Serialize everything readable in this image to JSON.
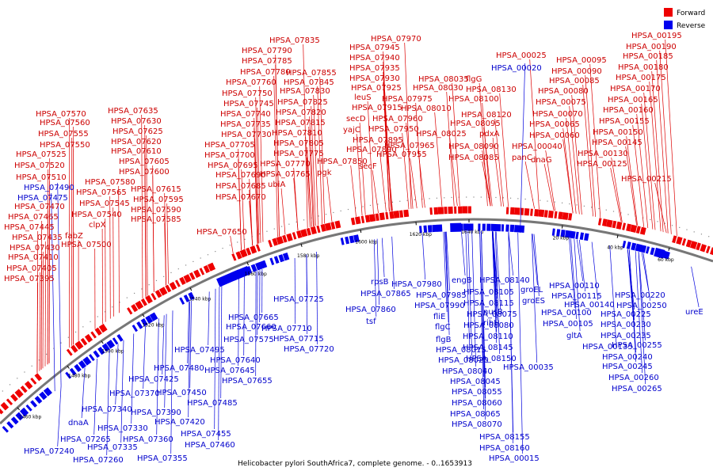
{
  "caption": "Helicobacter pylori SouthAfrica7, complete genome. - 0..1653913",
  "legend": [
    {
      "label": "Forward",
      "color": "#ee0000"
    },
    {
      "label": "Reverse",
      "color": "#0000ee"
    }
  ],
  "ticks": [
    "1460 kbp",
    "1480 kbp",
    "1500 kbp",
    "1520 kbp",
    "1540 kbp",
    "1560 kbp",
    "1580 kbp",
    "1600 kbp",
    "1620 kbp",
    "1640 kbp",
    "20 kbp",
    "40 kbp",
    "60 kbp"
  ],
  "forward_labels": [
    "HPSA_07395",
    "HPSA_07405",
    "HPSA_07410",
    "HPSA_07430",
    "HPSA_07435",
    "HPSA_07445",
    "HPSA_07465",
    "HPSA_07470",
    "HPSA_07510",
    "HPSA_07520",
    "HPSA_07525",
    "HPSA_07550",
    "HPSA_07555",
    "HPSA_07560",
    "HPSA_07570",
    "HPSA_07500",
    "fabZ",
    "clpX",
    "HPSA_07540",
    "HPSA_07545",
    "HPSA_07565",
    "HPSA_07580",
    "HPSA_07585",
    "HPSA_07590",
    "HPSA_07595",
    "HPSA_07615",
    "HPSA_07600",
    "HPSA_07605",
    "HPSA_07610",
    "HPSA_07620",
    "HPSA_07625",
    "HPSA_07630",
    "HPSA_07635",
    "HPSA_07650",
    "HPSA_07670",
    "HPSA_07685",
    "HPSA_07690",
    "HPSA_07695",
    "HPSA_07700",
    "HPSA_07705",
    "HPSA_07730",
    "HPSA_07735",
    "HPSA_07740",
    "HPSA_07745",
    "HPSA_07750",
    "HPSA_07760",
    "HPSA_07780",
    "HPSA_07785",
    "HPSA_07790",
    "HPSA_07835",
    "ubiA",
    "HPSA_07765",
    "HPSA_07770",
    "HPSA_07775",
    "HPSA_07805",
    "HPSA_07810",
    "HPSA_07815",
    "HPSA_07820",
    "HPSA_07825",
    "HPSA_07830",
    "HPSA_07845",
    "HPSA_07855",
    "pgk",
    "HPSA_07850",
    "secF",
    "HPSA_07890",
    "HPSA_07895",
    "yajC",
    "secD",
    "HPSA_07915",
    "leuS",
    "HPSA_07925",
    "HPSA_07930",
    "HPSA_07935",
    "HPSA_07940",
    "HPSA_07945",
    "HPSA_07970",
    "HPSA_07955",
    "HPSA_07965",
    "HPSA_07950",
    "HPSA_07960",
    "HPSA_07975",
    "HPSA_08010",
    "HPSA_08030",
    "HPSA_08035",
    "HPSA_08025",
    "HPSA_08085",
    "HPSA_08090",
    "HPSA_08095",
    "HPSA_08100",
    "HPSA_08120",
    "HPSA_08130",
    "flgG",
    "pdxA",
    "HPSA_00025",
    "panC",
    "HPSA_00040",
    "dnaG",
    "HPSA_00060",
    "HPSA_00065",
    "HPSA_00070",
    "HPSA_00075",
    "HPSA_00080",
    "HPSA_00085",
    "HPSA_00090",
    "HPSA_00095",
    "HPSA_00125",
    "HPSA_00130",
    "HPSA_00145",
    "HPSA_00150",
    "HPSA_00155",
    "HPSA_00160",
    "HPSA_00165",
    "HPSA_00170",
    "HPSA_00175",
    "HPSA_00180",
    "HPSA_00185",
    "HPSA_00190",
    "HPSA_00195",
    "HPSA_00215"
  ],
  "reverse_labels": [
    "HPSA_07490",
    "HPSA_07475",
    "HPSA_07240",
    "HPSA_07260",
    "HPSA_07265",
    "HPSA_07330",
    "dnaA",
    "HPSA_07335",
    "HPSA_07340",
    "HPSA_07355",
    "HPSA_07360",
    "HPSA_07370",
    "HPSA_07390",
    "HPSA_07420",
    "HPSA_07425",
    "HPSA_07450",
    "HPSA_07455",
    "HPSA_07460",
    "HPSA_07480",
    "HPSA_07485",
    "HPSA_07495",
    "HPSA_07575",
    "HPSA_07640",
    "HPSA_07645",
    "HPSA_07655",
    "HPSA_07660",
    "HPSA_07665",
    "HPSA_07710",
    "HPSA_07715",
    "HPSA_07720",
    "HPSA_07725",
    "HPSA_07860",
    "HPSA_07865",
    "rpsB",
    "tsf",
    "HPSA_07980",
    "HPSA_07985",
    "HPSA_07990",
    "fliE",
    "flgC",
    "flgB",
    "HPSA_08015",
    "HPSA_08020",
    "HPSA_08040",
    "HPSA_08045",
    "HPSA_08055",
    "HPSA_08060",
    "HPSA_08065",
    "HPSA_08070",
    "engB",
    "HPSA_08105",
    "HPSA_08115",
    "HPSA_08075",
    "HPSA_08080",
    "HPSA_08110",
    "HPSA_08140",
    "nusB",
    "ribH",
    "HPSA_08145",
    "HPSA_08150",
    "HPSA_08155",
    "HPSA_08160",
    "HPSA_00020",
    "groEL",
    "groES",
    "HPSA_00035",
    "HPSA_00015",
    "HPSA_00110",
    "HPSA_00115",
    "HPSA_00100",
    "HPSA_00105",
    "HPSA_00140",
    "gltA",
    "HPSA_00135",
    "HPSA_00220",
    "HPSA_00225",
    "HPSA_00230",
    "HPSA_00235",
    "HPSA_00240",
    "HPSA_00245",
    "HPSA_00250",
    "HPSA_00255",
    "HPSA_00260",
    "HPSA_00265",
    "ureE"
  ]
}
